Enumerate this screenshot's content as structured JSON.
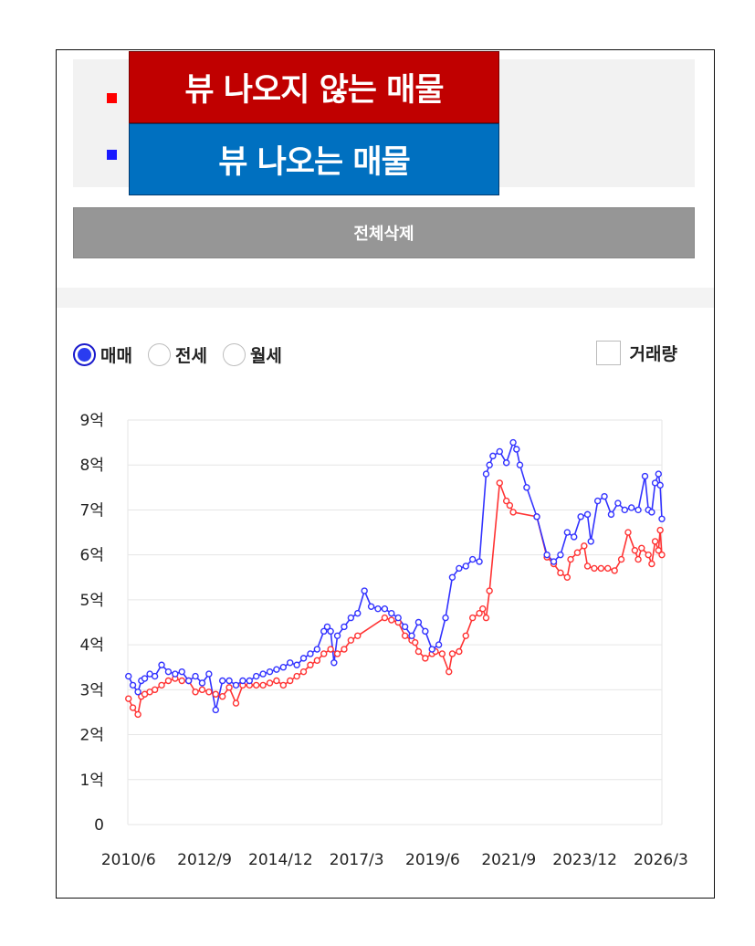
{
  "legend": {
    "items": [
      {
        "label": "뷰 나오지 않는 매물",
        "color": "#ff0000",
        "banner_color": "#c00000"
      },
      {
        "label": "뷰 나오는 매물",
        "color": "#1a1aff",
        "banner_color": "#0070c0"
      }
    ]
  },
  "delete_label": "전체삭제",
  "radio": {
    "options": [
      {
        "label": "매매",
        "checked": true
      },
      {
        "label": "전세",
        "checked": false
      },
      {
        "label": "월세",
        "checked": false
      }
    ]
  },
  "volume_checkbox": {
    "label": "거래량",
    "checked": false
  },
  "chart_data": {
    "type": "line",
    "title": "",
    "xlabel": "",
    "ylabel": "",
    "ylim": [
      0,
      9
    ],
    "yticks": [
      "0",
      "1억",
      "2억",
      "3억",
      "4억",
      "5억",
      "6억",
      "7억",
      "8억",
      "9억"
    ],
    "xlim": [
      2010.4,
      2026.2
    ],
    "xticks": [
      {
        "label": "2010/6",
        "x": 2010.42
      },
      {
        "label": "2012/9",
        "x": 2012.67
      },
      {
        "label": "2014/12",
        "x": 2014.92
      },
      {
        "label": "2017/3",
        "x": 2017.17
      },
      {
        "label": "2019/6",
        "x": 2019.42
      },
      {
        "label": "2021/9",
        "x": 2021.67
      },
      {
        "label": "2023/12",
        "x": 2023.92
      },
      {
        "label": "2026/3",
        "x": 2026.17
      }
    ],
    "grid": true,
    "series": [
      {
        "name": "뷰 나오지 않는 매물",
        "color": "#ff3333",
        "x": [
          2010.42,
          2010.55,
          2010.7,
          2010.8,
          2010.9,
          2011.05,
          2011.2,
          2011.4,
          2011.6,
          2011.8,
          2012.0,
          2012.2,
          2012.4,
          2012.6,
          2012.8,
          2013.0,
          2013.2,
          2013.4,
          2013.6,
          2013.8,
          2014.0,
          2014.2,
          2014.4,
          2014.6,
          2014.8,
          2015.0,
          2015.2,
          2015.4,
          2015.6,
          2015.8,
          2016.0,
          2016.2,
          2016.4,
          2016.6,
          2016.8,
          2017.0,
          2017.2,
          2018.0,
          2018.2,
          2018.4,
          2018.6,
          2018.8,
          2018.9,
          2019.0,
          2019.2,
          2019.4,
          2019.5,
          2019.7,
          2019.9,
          2020.0,
          2020.2,
          2020.4,
          2020.6,
          2020.8,
          2020.9,
          2021.0,
          2021.1,
          2021.4,
          2021.6,
          2021.7,
          2021.8,
          2022.5,
          2022.8,
          2023.0,
          2023.2,
          2023.4,
          2023.5,
          2023.7,
          2023.9,
          2024.0,
          2024.2,
          2024.4,
          2024.6,
          2024.8,
          2025.0,
          2025.2,
          2025.4,
          2025.5,
          2025.6,
          2025.8,
          2025.9,
          2026.0,
          2026.1,
          2026.15,
          2026.2
        ],
        "y": [
          2.8,
          2.6,
          2.45,
          2.85,
          2.9,
          2.95,
          3.0,
          3.1,
          3.2,
          3.25,
          3.2,
          3.2,
          2.95,
          3.0,
          2.95,
          2.9,
          2.85,
          3.05,
          2.7,
          3.1,
          3.1,
          3.1,
          3.1,
          3.15,
          3.2,
          3.1,
          3.2,
          3.3,
          3.4,
          3.55,
          3.65,
          3.8,
          3.9,
          3.8,
          3.9,
          4.1,
          4.2,
          4.6,
          4.55,
          4.5,
          4.2,
          4.1,
          4.05,
          3.85,
          3.7,
          3.8,
          3.85,
          3.8,
          3.4,
          3.8,
          3.85,
          4.2,
          4.6,
          4.7,
          4.8,
          4.6,
          5.2,
          7.6,
          7.2,
          7.1,
          6.95,
          6.85,
          5.95,
          5.8,
          5.6,
          5.5,
          5.9,
          6.05,
          6.2,
          5.75,
          5.7,
          5.7,
          5.7,
          5.65,
          5.9,
          6.5,
          6.1,
          5.9,
          6.15,
          6.0,
          5.8,
          6.3,
          6.1,
          6.55,
          6.0
        ]
      },
      {
        "name": "뷰 나오는 매물",
        "color": "#3333ff",
        "x": [
          2010.42,
          2010.55,
          2010.7,
          2010.8,
          2010.9,
          2011.05,
          2011.2,
          2011.4,
          2011.6,
          2011.8,
          2012.0,
          2012.2,
          2012.4,
          2012.6,
          2012.8,
          2013.0,
          2013.2,
          2013.4,
          2013.6,
          2013.8,
          2014.0,
          2014.2,
          2014.4,
          2014.6,
          2014.8,
          2015.0,
          2015.2,
          2015.4,
          2015.6,
          2015.8,
          2016.0,
          2016.2,
          2016.3,
          2016.4,
          2016.5,
          2016.6,
          2016.8,
          2017.0,
          2017.2,
          2017.4,
          2017.6,
          2017.8,
          2018.0,
          2018.2,
          2018.4,
          2018.6,
          2018.8,
          2019.0,
          2019.2,
          2019.4,
          2019.6,
          2019.8,
          2020.0,
          2020.2,
          2020.4,
          2020.6,
          2020.8,
          2021.0,
          2021.1,
          2021.2,
          2021.4,
          2021.6,
          2021.8,
          2021.9,
          2022.0,
          2022.2,
          2022.5,
          2022.8,
          2023.0,
          2023.2,
          2023.4,
          2023.6,
          2023.8,
          2024.0,
          2024.1,
          2024.3,
          2024.5,
          2024.7,
          2024.9,
          2025.1,
          2025.3,
          2025.5,
          2025.7,
          2025.8,
          2025.9,
          2026.0,
          2026.1,
          2026.15,
          2026.2
        ],
        "y": [
          3.3,
          3.1,
          2.95,
          3.2,
          3.25,
          3.35,
          3.3,
          3.55,
          3.4,
          3.35,
          3.4,
          3.2,
          3.3,
          3.15,
          3.35,
          2.55,
          3.2,
          3.2,
          3.1,
          3.2,
          3.2,
          3.3,
          3.35,
          3.4,
          3.45,
          3.5,
          3.6,
          3.55,
          3.7,
          3.8,
          3.9,
          4.3,
          4.4,
          4.3,
          3.6,
          4.2,
          4.4,
          4.6,
          4.7,
          5.2,
          4.85,
          4.8,
          4.8,
          4.7,
          4.6,
          4.4,
          4.2,
          4.5,
          4.3,
          3.9,
          4.0,
          4.6,
          5.5,
          5.7,
          5.75,
          5.9,
          5.85,
          7.8,
          8.0,
          8.2,
          8.3,
          8.05,
          8.5,
          8.35,
          8.0,
          7.5,
          6.85,
          6.0,
          5.85,
          6.0,
          6.5,
          6.4,
          6.85,
          6.9,
          6.3,
          7.2,
          7.3,
          6.9,
          7.15,
          7.0,
          7.05,
          7.0,
          7.75,
          7.0,
          6.95,
          7.6,
          7.8,
          7.55,
          6.8
        ]
      }
    ]
  }
}
